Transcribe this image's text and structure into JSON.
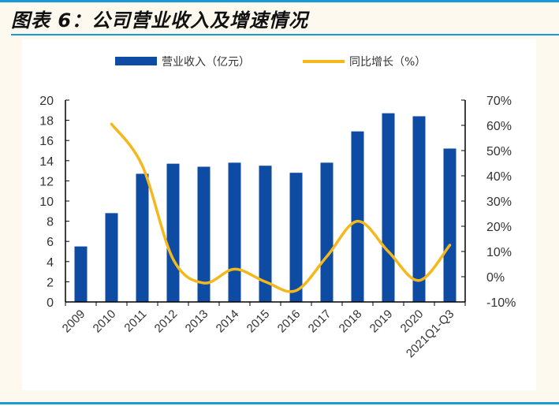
{
  "title": "图表 6：公司营业收入及增速情况",
  "chart_data": {
    "type": "bar+line",
    "categories": [
      "2009",
      "2010",
      "2011",
      "2012",
      "2013",
      "2014",
      "2015",
      "2016",
      "2017",
      "2018",
      "2019",
      "2020",
      "2021Q1-Q3"
    ],
    "series": [
      {
        "name": "营业收入（亿元）",
        "type": "bar",
        "axis": "left",
        "color": "#0e4ba3",
        "values": [
          5.5,
          8.8,
          12.7,
          13.7,
          13.4,
          13.8,
          13.5,
          12.8,
          13.8,
          16.9,
          18.7,
          18.4,
          15.2
        ]
      },
      {
        "name": "同比增长（%）",
        "type": "line",
        "axis": "right",
        "color": "#f5b81c",
        "values": [
          null,
          60.5,
          44,
          7,
          -2.5,
          3,
          -2,
          -5.5,
          8,
          22,
          10,
          -1.5,
          12.5
        ]
      }
    ],
    "left_axis": {
      "min": 0,
      "max": 20,
      "step": 2,
      "ticks": [
        "0",
        "2",
        "4",
        "6",
        "8",
        "10",
        "12",
        "14",
        "16",
        "18",
        "20"
      ]
    },
    "right_axis": {
      "min": -10,
      "max": 70,
      "step": 10,
      "ticks": [
        "-10%",
        "0%",
        "10%",
        "20%",
        "30%",
        "40%",
        "50%",
        "60%",
        "70%"
      ]
    },
    "legend_position": "top",
    "grid": false
  }
}
